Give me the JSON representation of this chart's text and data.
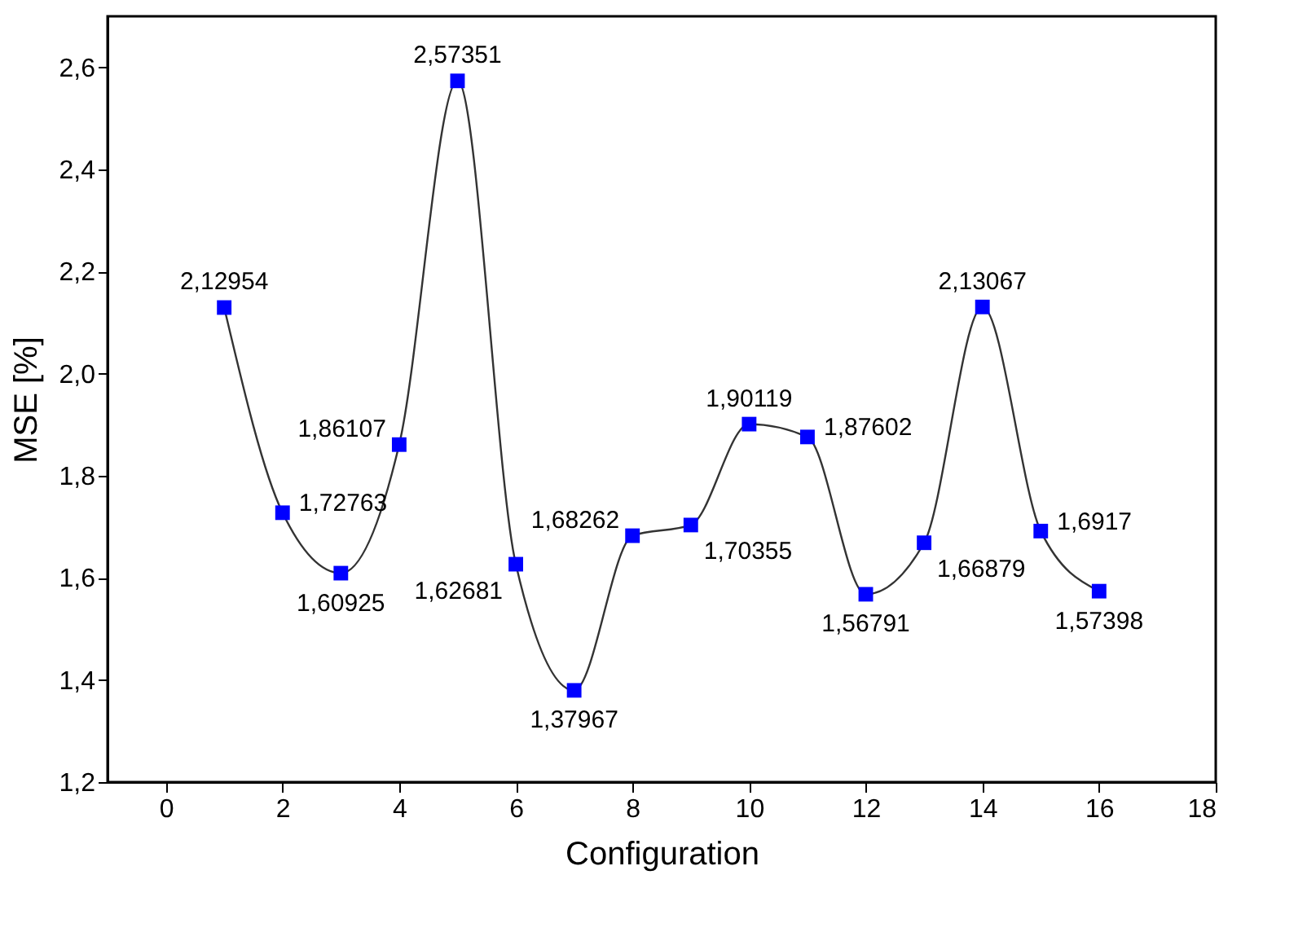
{
  "chart_data": {
    "type": "line",
    "xlabel": "Configuration",
    "ylabel": "MSE [%]",
    "x": [
      1,
      2,
      3,
      4,
      5,
      6,
      7,
      8,
      9,
      10,
      11,
      12,
      13,
      14,
      15,
      16
    ],
    "series": [
      {
        "color": "#0000ff",
        "values": [
          2.12954,
          1.72763,
          1.60925,
          1.86107,
          2.57351,
          1.62681,
          1.37967,
          1.68262,
          1.70355,
          1.90119,
          1.87602,
          1.56791,
          1.66879,
          2.13067,
          1.6917,
          1.57398
        ],
        "value_labels": [
          "2,12954",
          "1,72763",
          "1,60925",
          "1,86107",
          "2,57351",
          "1,62681",
          "1,37967",
          "1,68262",
          "1,70355",
          "1,90119",
          "1,87602",
          "1,56791",
          "1,66879",
          "2,13067",
          "1,6917",
          "1,57398"
        ]
      }
    ],
    "xlim": [
      -1,
      18
    ],
    "xticks": [
      0,
      2,
      4,
      6,
      8,
      10,
      12,
      14,
      16,
      18
    ],
    "ylim": [
      1.2,
      2.7
    ],
    "yticks": [
      {
        "value": 1.2,
        "label": "1,2"
      },
      {
        "value": 1.4,
        "label": "1,4"
      },
      {
        "value": 1.6,
        "label": "1,6"
      },
      {
        "value": 1.8,
        "label": "1,8"
      },
      {
        "value": 2.0,
        "label": "2,0"
      },
      {
        "value": 2.2,
        "label": "2,2"
      },
      {
        "value": 2.4,
        "label": "2,4"
      },
      {
        "value": 2.6,
        "label": "2,6"
      }
    ],
    "grid": false,
    "marker": "square",
    "line_style": "solid"
  }
}
